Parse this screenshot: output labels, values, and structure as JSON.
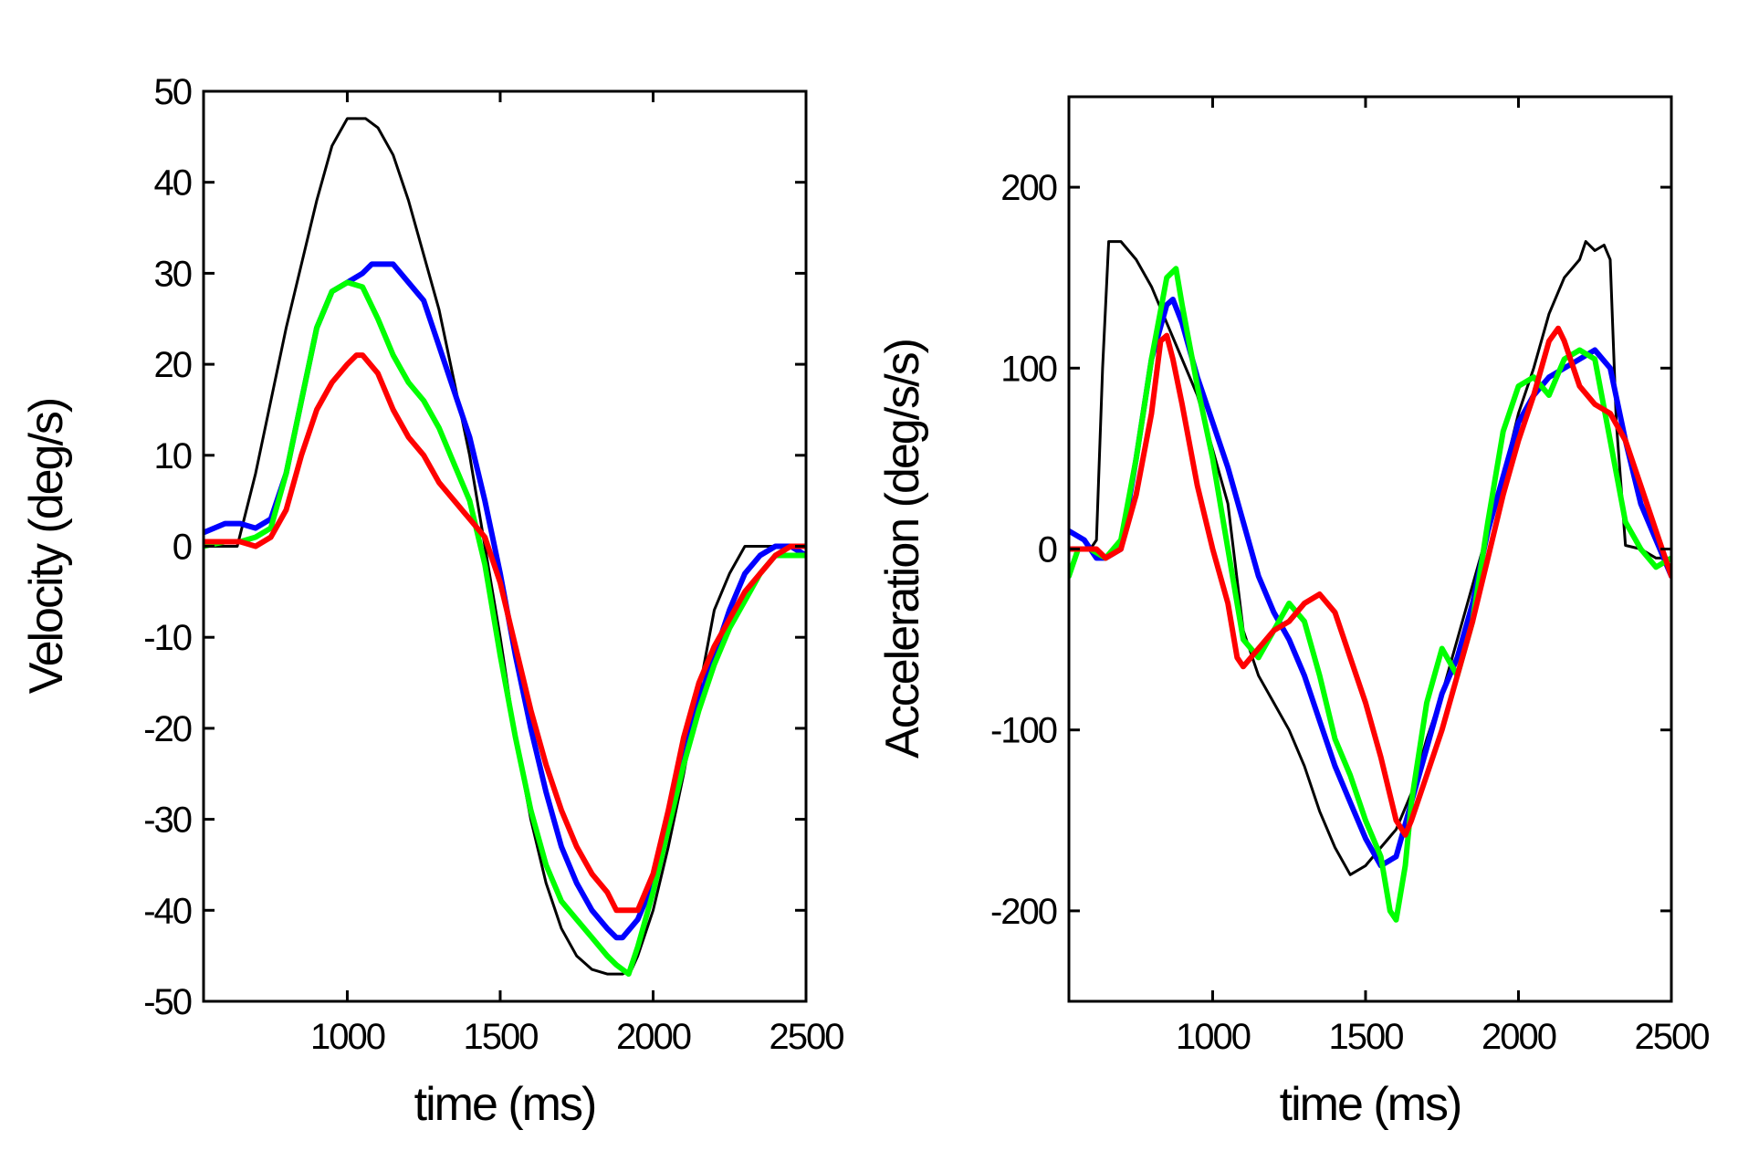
{
  "chart_data": [
    {
      "type": "line",
      "title": "",
      "xlabel": "time (ms)",
      "ylabel": "Velocity (deg/s)",
      "xlim": [
        530,
        2500
      ],
      "ylim": [
        -50,
        50
      ],
      "xticks": [
        1000,
        1500,
        2000,
        2500
      ],
      "xtick_labels": [
        "1000",
        "1500",
        "2000",
        "2500"
      ],
      "yticks": [
        50,
        40,
        30,
        20,
        10,
        0,
        -10,
        -20,
        -30,
        -40,
        -50
      ],
      "ytick_labels": [
        "50",
        "40",
        "30",
        "20",
        "10",
        "0",
        "-10",
        "-20",
        "-30",
        "-40",
        "-50"
      ],
      "grid": false,
      "series": [
        {
          "name": "black",
          "color": "#000000",
          "width": 3,
          "x": [
            530,
            600,
            640,
            700,
            800,
            900,
            950,
            1000,
            1030,
            1060,
            1100,
            1150,
            1200,
            1300,
            1400,
            1450,
            1500,
            1550,
            1600,
            1650,
            1700,
            1750,
            1800,
            1850,
            1870,
            1900,
            1930,
            1950,
            2000,
            2050,
            2100,
            2150,
            2200,
            2250,
            2300,
            2350,
            2400,
            2500
          ],
          "y": [
            0,
            0,
            0,
            8,
            24,
            38,
            44,
            47,
            47,
            47,
            46,
            43,
            38,
            26,
            10,
            0,
            -10,
            -21,
            -30,
            -37,
            -42,
            -45,
            -46.5,
            -47,
            -47,
            -47,
            -46.5,
            -45,
            -40,
            -33,
            -25,
            -16,
            -7,
            -3,
            0,
            0,
            0,
            0
          ]
        },
        {
          "name": "blue",
          "color": "#0000ff",
          "width": 6,
          "x": [
            530,
            600,
            650,
            700,
            750,
            800,
            850,
            900,
            950,
            1000,
            1050,
            1080,
            1100,
            1150,
            1200,
            1250,
            1300,
            1350,
            1400,
            1450,
            1500,
            1550,
            1600,
            1650,
            1700,
            1750,
            1800,
            1850,
            1880,
            1900,
            1950,
            2000,
            2050,
            2100,
            2150,
            2200,
            2250,
            2300,
            2350,
            2400,
            2450,
            2500
          ],
          "y": [
            1.5,
            2.5,
            2.5,
            2,
            3,
            8,
            16,
            24,
            28,
            29,
            30,
            31,
            31,
            31,
            29,
            27,
            22,
            17,
            12,
            5,
            -3,
            -12,
            -20,
            -27,
            -33,
            -37,
            -40,
            -42,
            -43,
            -43,
            -41,
            -37,
            -30,
            -22,
            -17,
            -12,
            -7,
            -3,
            -1,
            0,
            0,
            -1
          ]
        },
        {
          "name": "green",
          "color": "#00ff00",
          "width": 6,
          "x": [
            530,
            600,
            650,
            700,
            750,
            800,
            850,
            900,
            950,
            1000,
            1050,
            1100,
            1150,
            1200,
            1250,
            1300,
            1350,
            1400,
            1450,
            1500,
            1550,
            1600,
            1650,
            1700,
            1750,
            1800,
            1850,
            1880,
            1900,
            1920,
            1950,
            2000,
            2050,
            2100,
            2150,
            2200,
            2250,
            2300,
            2350,
            2400,
            2450,
            2500
          ],
          "y": [
            0,
            0.5,
            0.5,
            1,
            2,
            8,
            16,
            24,
            28,
            29,
            28.5,
            25,
            21,
            18,
            16,
            13,
            9,
            5,
            -2,
            -12,
            -21,
            -29,
            -35,
            -39,
            -41,
            -43,
            -45,
            -46,
            -46.5,
            -47,
            -44,
            -38,
            -31,
            -24,
            -18,
            -13,
            -9,
            -6,
            -3,
            -1,
            -1,
            -1
          ]
        },
        {
          "name": "red",
          "color": "#ff0000",
          "width": 6,
          "x": [
            530,
            600,
            650,
            700,
            750,
            800,
            850,
            900,
            950,
            1000,
            1030,
            1050,
            1100,
            1150,
            1200,
            1250,
            1300,
            1350,
            1400,
            1450,
            1500,
            1550,
            1600,
            1650,
            1700,
            1750,
            1800,
            1850,
            1880,
            1900,
            1950,
            2000,
            2050,
            2100,
            2150,
            2200,
            2250,
            2300,
            2350,
            2400,
            2450,
            2500
          ],
          "y": [
            0.5,
            0.5,
            0.5,
            0,
            1,
            4,
            10,
            15,
            18,
            20,
            21,
            21,
            19,
            15,
            12,
            10,
            7,
            5,
            3,
            1,
            -4,
            -11,
            -18,
            -24,
            -29,
            -33,
            -36,
            -38,
            -40,
            -40,
            -40,
            -36,
            -29,
            -21,
            -15,
            -11,
            -8,
            -5,
            -3,
            -1,
            0,
            0
          ]
        }
      ]
    },
    {
      "type": "line",
      "title": "",
      "xlabel": "time (ms)",
      "ylabel": "Acceleration (deg/s/s)",
      "xlim": [
        530,
        2500
      ],
      "ylim": [
        -250,
        250
      ],
      "xticks": [
        1000,
        1500,
        2000,
        2500
      ],
      "xtick_labels": [
        "1000",
        "1500",
        "2000",
        "2500"
      ],
      "yticks": [
        200,
        100,
        0,
        -100,
        -200
      ],
      "ytick_labels": [
        "200",
        "100",
        "0",
        "-100",
        "-200"
      ],
      "grid": false,
      "series": [
        {
          "name": "black",
          "color": "#000000",
          "width": 3,
          "x": [
            530,
            600,
            620,
            640,
            660,
            700,
            750,
            800,
            850,
            900,
            950,
            1000,
            1050,
            1100,
            1150,
            1200,
            1250,
            1300,
            1350,
            1400,
            1450,
            1500,
            1550,
            1600,
            1650,
            1700,
            1750,
            1800,
            1850,
            1900,
            1950,
            2000,
            2050,
            2100,
            2150,
            2200,
            2220,
            2250,
            2280,
            2300,
            2320,
            2350,
            2400,
            2450,
            2500
          ],
          "y": [
            0,
            0,
            5,
            100,
            170,
            170,
            160,
            145,
            125,
            105,
            85,
            55,
            25,
            -45,
            -70,
            -85,
            -100,
            -120,
            -145,
            -165,
            -180,
            -175,
            -165,
            -155,
            -135,
            -105,
            -80,
            -50,
            -20,
            10,
            40,
            75,
            100,
            130,
            150,
            160,
            170,
            165,
            168,
            160,
            70,
            2,
            0,
            -5,
            -5
          ]
        },
        {
          "name": "blue",
          "color": "#0000ff",
          "width": 6,
          "x": [
            530,
            580,
            620,
            650,
            700,
            750,
            800,
            850,
            870,
            900,
            950,
            1000,
            1050,
            1100,
            1150,
            1200,
            1250,
            1300,
            1350,
            1400,
            1450,
            1500,
            1550,
            1600,
            1650,
            1700,
            1750,
            1800,
            1850,
            1900,
            1950,
            2000,
            2050,
            2100,
            2150,
            2200,
            2250,
            2300,
            2350,
            2400,
            2450,
            2500
          ],
          "y": [
            10,
            5,
            -5,
            -5,
            0,
            50,
            105,
            135,
            138,
            125,
            95,
            70,
            45,
            15,
            -15,
            -35,
            -50,
            -70,
            -95,
            -120,
            -140,
            -160,
            -175,
            -170,
            -140,
            -110,
            -80,
            -60,
            -30,
            10,
            40,
            70,
            85,
            95,
            100,
            105,
            110,
            100,
            60,
            25,
            5,
            -15
          ]
        },
        {
          "name": "green",
          "color": "#00ff00",
          "width": 6,
          "x": [
            530,
            560,
            600,
            650,
            700,
            750,
            800,
            850,
            880,
            900,
            950,
            1000,
            1050,
            1100,
            1150,
            1200,
            1250,
            1300,
            1350,
            1400,
            1450,
            1500,
            1550,
            1580,
            1600,
            1630,
            1650,
            1700,
            1750,
            1800,
            1850,
            1900,
            1950,
            2000,
            2050,
            2100,
            2150,
            2200,
            2250,
            2300,
            2350,
            2400,
            2450,
            2500
          ],
          "y": [
            -15,
            0,
            0,
            -5,
            5,
            50,
            105,
            150,
            155,
            135,
            90,
            50,
            0,
            -50,
            -60,
            -45,
            -30,
            -40,
            -70,
            -105,
            -125,
            -150,
            -170,
            -200,
            -205,
            -175,
            -140,
            -85,
            -55,
            -70,
            -40,
            15,
            65,
            90,
            95,
            85,
            105,
            110,
            105,
            60,
            15,
            0,
            -10,
            -5
          ]
        },
        {
          "name": "red",
          "color": "#ff0000",
          "width": 6,
          "x": [
            530,
            580,
            620,
            650,
            700,
            750,
            800,
            830,
            850,
            870,
            900,
            950,
            1000,
            1050,
            1080,
            1100,
            1150,
            1200,
            1250,
            1300,
            1350,
            1400,
            1450,
            1500,
            1550,
            1600,
            1630,
            1650,
            1700,
            1750,
            1800,
            1850,
            1900,
            1950,
            2000,
            2050,
            2100,
            2130,
            2150,
            2200,
            2250,
            2300,
            2350,
            2400,
            2450,
            2500
          ],
          "y": [
            0,
            0,
            0,
            -5,
            0,
            30,
            75,
            115,
            118,
            105,
            80,
            35,
            0,
            -30,
            -60,
            -65,
            -55,
            -45,
            -40,
            -30,
            -25,
            -35,
            -60,
            -85,
            -115,
            -150,
            -158,
            -150,
            -125,
            -100,
            -70,
            -40,
            -5,
            30,
            60,
            85,
            115,
            122,
            115,
            90,
            80,
            75,
            60,
            35,
            10,
            -15
          ]
        }
      ]
    }
  ]
}
